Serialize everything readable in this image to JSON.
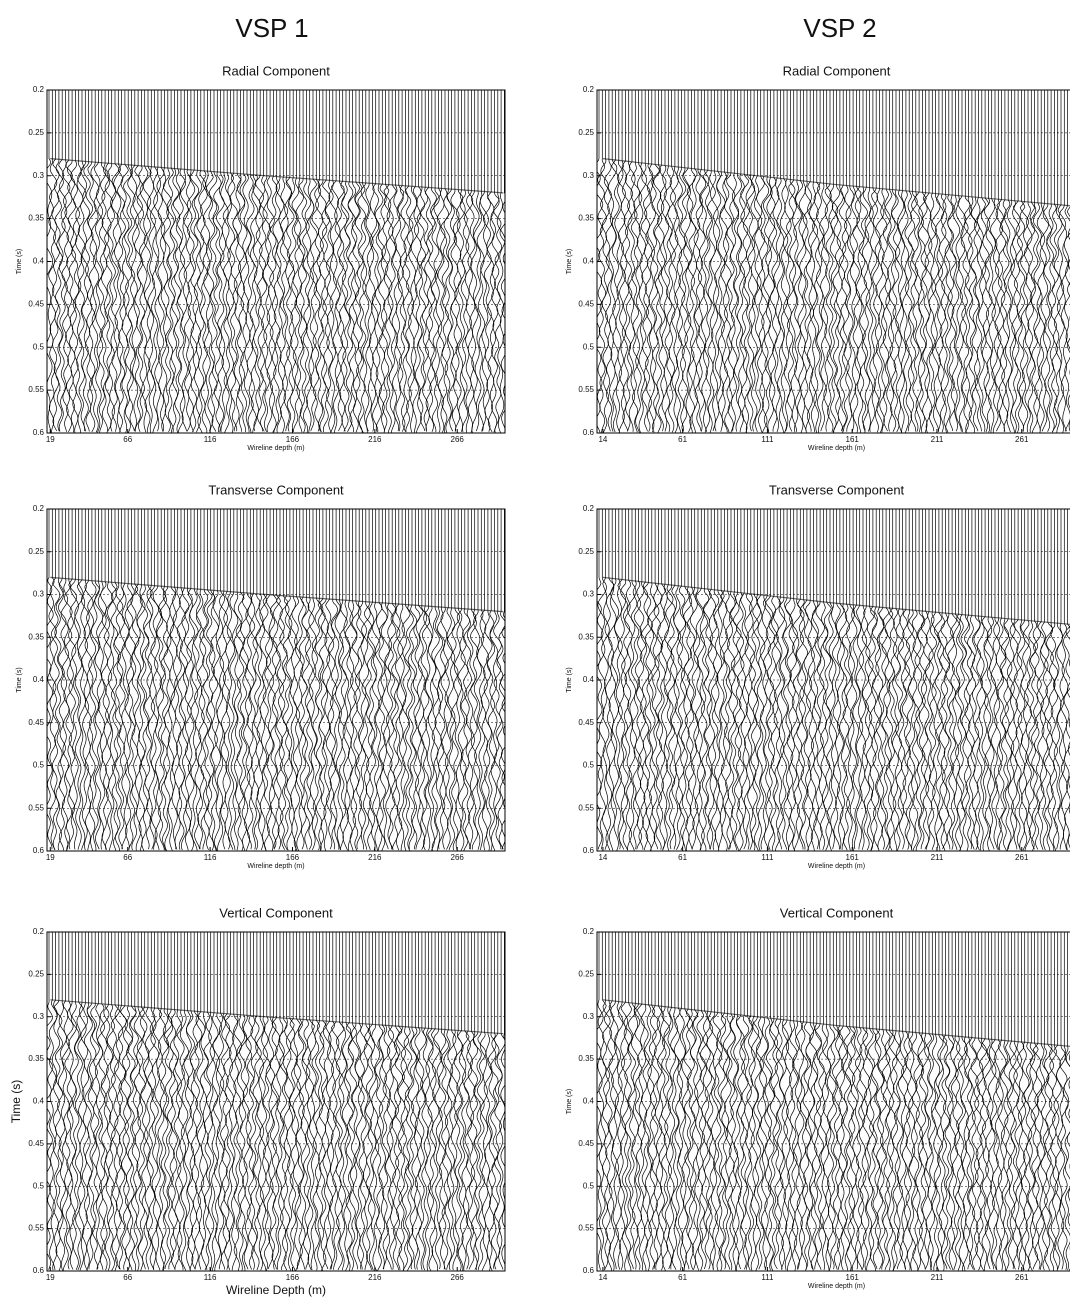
{
  "headers": [
    "VSP 1",
    "VSP 2"
  ],
  "chart_data": [
    {
      "type": "wiggle",
      "title": "Radial Component",
      "xlabel": "Wireline depth (m)",
      "ylabel": "Time (s)",
      "xlim": [
        17,
        295
      ],
      "ylim": [
        0.2,
        0.6
      ],
      "y_inverted": true,
      "grid": true,
      "color": "#000000",
      "xticks": [
        19,
        66,
        116,
        166,
        216,
        266
      ],
      "yticks": [
        0.2,
        0.25,
        0.3,
        0.35,
        0.4,
        0.45,
        0.5,
        0.55,
        0.6
      ],
      "series": [
        {
          "x": [
            19,
            150,
            294
          ],
          "values": [
            0.28,
            0.3,
            0.32
          ]
        }
      ]
    },
    {
      "type": "wiggle",
      "title": "Transverse Component",
      "xlabel": "Wireline depth (m)",
      "ylabel": "Time (s)",
      "xlim": [
        17,
        295
      ],
      "ylim": [
        0.2,
        0.6
      ],
      "y_inverted": true,
      "grid": true,
      "color": "#000000",
      "xticks": [
        19,
        66,
        116,
        166,
        216,
        266
      ],
      "yticks": [
        0.2,
        0.25,
        0.3,
        0.35,
        0.4,
        0.45,
        0.5,
        0.55,
        0.6
      ],
      "series": [
        {
          "x": [
            19,
            150,
            294
          ],
          "values": [
            0.28,
            0.3,
            0.32
          ]
        }
      ]
    },
    {
      "type": "wiggle",
      "title": "Vertical Component",
      "xlabel": "Wireline Depth (m)",
      "ylabel": "Time (s)",
      "xlim": [
        17,
        295
      ],
      "ylim": [
        0.2,
        0.6
      ],
      "y_inverted": true,
      "grid": true,
      "color": "#000000",
      "xticks": [
        19,
        66,
        116,
        166,
        216,
        266
      ],
      "yticks": [
        0.2,
        0.25,
        0.3,
        0.35,
        0.4,
        0.45,
        0.5,
        0.55,
        0.6
      ],
      "series": [
        {
          "x": [
            19,
            150,
            294
          ],
          "values": [
            0.28,
            0.3,
            0.32
          ]
        }
      ]
    },
    {
      "type": "wiggle",
      "title": "Radial Component",
      "xlabel": "Wireline depth (m)",
      "ylabel": "Time (s)",
      "xlim": [
        10.5,
        293
      ],
      "ylim": [
        0.2,
        0.6
      ],
      "y_inverted": true,
      "grid": true,
      "color": "#000000",
      "xticks": [
        14,
        61,
        111,
        161,
        211,
        261
      ],
      "yticks": [
        0.2,
        0.25,
        0.3,
        0.35,
        0.4,
        0.45,
        0.5,
        0.55,
        0.6
      ],
      "series": [
        {
          "x": [
            14,
            150,
            290
          ],
          "values": [
            0.28,
            0.31,
            0.335
          ]
        }
      ]
    },
    {
      "type": "wiggle",
      "title": "Transverse Component",
      "xlabel": "Wireline depth (m)",
      "ylabel": "Time (s)",
      "xlim": [
        10.5,
        293
      ],
      "ylim": [
        0.2,
        0.6
      ],
      "y_inverted": true,
      "grid": true,
      "color": "#000000",
      "xticks": [
        14,
        61,
        111,
        161,
        211,
        261
      ],
      "yticks": [
        0.2,
        0.25,
        0.3,
        0.35,
        0.4,
        0.45,
        0.5,
        0.55,
        0.6
      ],
      "series": [
        {
          "x": [
            14,
            150,
            290
          ],
          "values": [
            0.28,
            0.31,
            0.335
          ]
        }
      ]
    },
    {
      "type": "wiggle",
      "title": "Vertical Component",
      "xlabel": "Wireline depth (m)",
      "ylabel": "Time (s)",
      "xlim": [
        10.5,
        293
      ],
      "ylim": [
        0.2,
        0.6
      ],
      "y_inverted": true,
      "grid": true,
      "color": "#000000",
      "xticks": [
        14,
        61,
        111,
        161,
        211,
        261
      ],
      "yticks": [
        0.2,
        0.25,
        0.3,
        0.35,
        0.4,
        0.45,
        0.5,
        0.55,
        0.6
      ],
      "series": [
        {
          "x": [
            14,
            150,
            290
          ],
          "values": [
            0.28,
            0.31,
            0.335
          ]
        }
      ]
    }
  ]
}
